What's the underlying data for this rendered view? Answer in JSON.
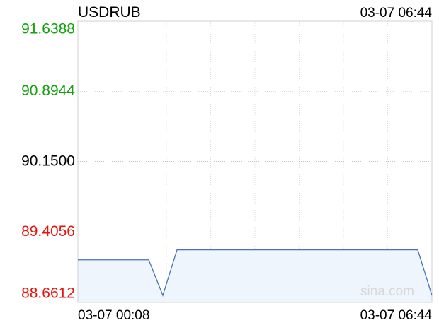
{
  "chart_data": {
    "type": "line",
    "title": "USDRUB",
    "timestamp": "03-07 06:44",
    "watermark": "sina.com",
    "categories": [
      "03-07 00:08",
      null,
      null,
      null,
      null,
      null,
      null,
      null,
      null,
      null,
      null,
      null,
      null,
      null,
      null,
      null,
      null,
      null,
      null,
      null,
      null,
      null,
      null,
      null,
      null,
      "03-07 06:44"
    ],
    "series": [
      {
        "name": "USDRUB",
        "color": "#4a72b8",
        "values": [
          89.112,
          89.112,
          89.112,
          89.112,
          89.112,
          89.112,
          88.736,
          89.2176,
          89.2176,
          89.2176,
          89.2176,
          89.2176,
          89.2176,
          89.2176,
          89.2176,
          89.2176,
          89.2176,
          89.2176,
          89.2176,
          89.2176,
          89.2176,
          89.2176,
          89.2176,
          89.2176,
          89.2176,
          88.736
        ]
      }
    ],
    "ylim": [
      88.6612,
      91.6388
    ],
    "yticks": [
      {
        "value": 88.6612,
        "label": "88.6612"
      },
      {
        "value": 89.4056,
        "label": "89.4056"
      },
      {
        "value": 90.15,
        "label": "90.1500"
      },
      {
        "value": 90.8944,
        "label": "90.8944"
      },
      {
        "value": 91.6388,
        "label": "91.6388"
      }
    ],
    "grid": true,
    "vertical_grid_count": 8,
    "up_color": "#13a10e",
    "down_color": "#e8140c",
    "fill_color": "#eef5fd"
  }
}
